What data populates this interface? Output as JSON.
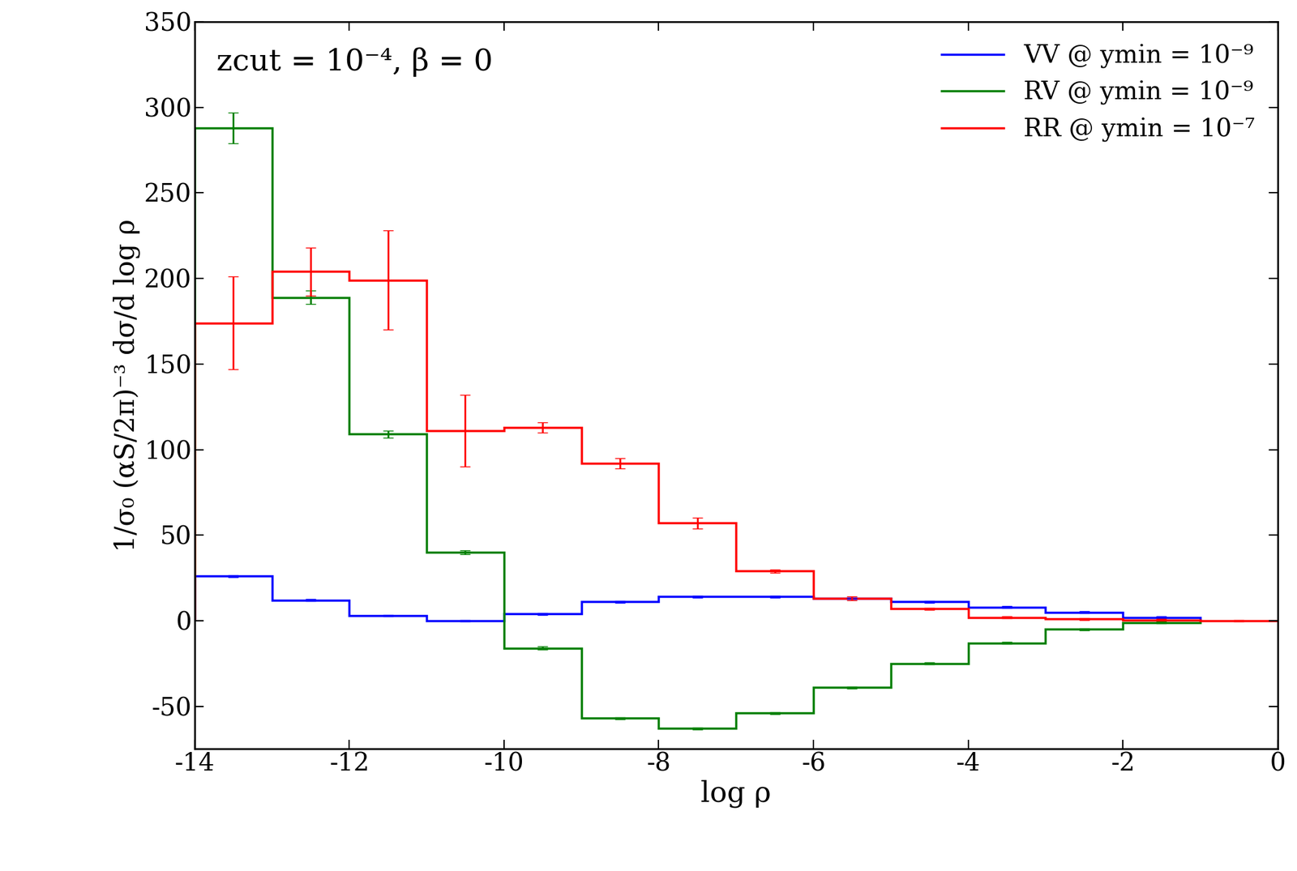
{
  "chart_data": {
    "type": "step",
    "annotation": "zcut = 10⁻⁴, β = 0",
    "x_label": "log ρ",
    "y_label": "1/σ₀ (αS/2π)⁻³ dσ/d log ρ",
    "bins": [
      -14,
      -13,
      -12,
      -11,
      -10,
      -9,
      -8,
      -7,
      -6,
      -5,
      -4,
      -3,
      -2,
      -1,
      0
    ],
    "series": [
      {
        "name": "VV @ ymin = 10⁻⁹",
        "color": "#0000ff",
        "values": [
          26,
          12,
          3,
          0,
          4,
          11,
          14,
          14,
          13,
          11,
          8,
          5,
          2,
          null
        ],
        "errors": [
          0.5,
          0.5,
          0.5,
          0.5,
          0.5,
          0.5,
          0.5,
          0.5,
          0.5,
          0.5,
          0.5,
          0.5,
          0.5,
          null
        ]
      },
      {
        "name": "RV @ ymin = 10⁻⁹",
        "color": "#008000",
        "values": [
          288,
          189,
          109,
          40,
          -16,
          -57,
          -63,
          -54,
          -39,
          -25,
          -13,
          -5,
          -1,
          null
        ],
        "errors": [
          9,
          4,
          2,
          1,
          1,
          0.5,
          0.5,
          0.5,
          0.5,
          0.5,
          0.5,
          0.5,
          0.5,
          null
        ]
      },
      {
        "name": "RR @ ymin = 10⁻⁷",
        "color": "#ff0000",
        "values": [
          174,
          204,
          199,
          111,
          113,
          92,
          57,
          29,
          13,
          7,
          2,
          1,
          0.5,
          0
        ],
        "errors": [
          27,
          14,
          29,
          21,
          3,
          3,
          3,
          1,
          1,
          0.5,
          0.5,
          0.5,
          0.5,
          0.5
        ]
      }
    ],
    "xlim": [
      -14,
      0
    ],
    "xticks": [
      -14,
      -12,
      -10,
      -8,
      -6,
      -4,
      -2,
      0
    ],
    "ylim": [
      -75,
      350
    ],
    "yticks": [
      -50,
      0,
      50,
      100,
      150,
      200,
      250,
      300,
      350
    ],
    "legend": "upper right",
    "grid": false
  }
}
